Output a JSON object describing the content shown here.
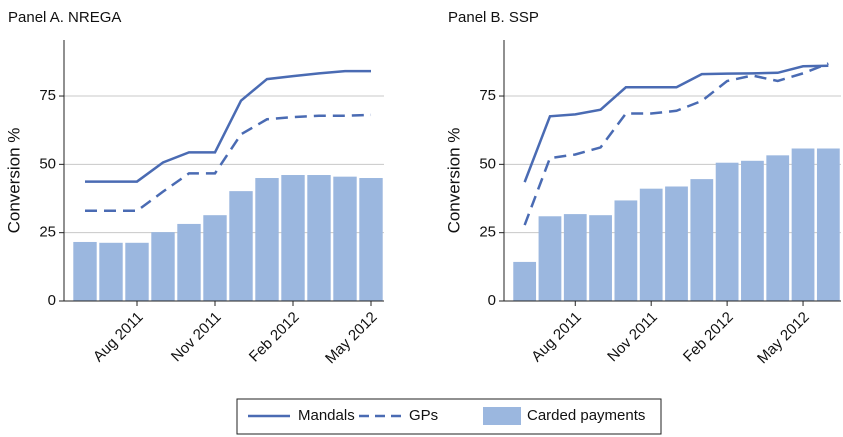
{
  "chart_data": [
    {
      "type": "combo",
      "title": "Panel A. NREGA",
      "ylabel": "Conversion %",
      "categories": [
        null,
        null,
        "Aug 2011",
        null,
        null,
        "Nov 2011",
        null,
        null,
        "Feb 2012",
        null,
        null,
        "May 2012"
      ],
      "ylim": [
        0,
        95.5
      ],
      "yticks": [
        0,
        25,
        50,
        75
      ],
      "grid": true,
      "series": [
        {
          "name": "Mandals",
          "mark": "line",
          "dash": false,
          "color": "#4a6bb3",
          "values": [
            43.7,
            43.7,
            43.7,
            50.7,
            54.4,
            54.4,
            73.3,
            81.2,
            82.3,
            83.3,
            84.1,
            84.1
          ]
        },
        {
          "name": "GPs",
          "mark": "line",
          "dash": true,
          "color": "#4a6bb3",
          "values": [
            33,
            33,
            33,
            40,
            46.7,
            46.7,
            61,
            66.5,
            67.3,
            67.8,
            67.8,
            68.1
          ]
        },
        {
          "name": "Carded payments",
          "mark": "bar",
          "color": "#9bb7df",
          "values": [
            21.6,
            21.3,
            21.3,
            25.2,
            28.2,
            31.4,
            40.2,
            45.0,
            46.1,
            46.1,
            45.5,
            45.0
          ]
        }
      ]
    },
    {
      "type": "combo",
      "title": "Panel B. SSP",
      "ylabel": "Conversion %",
      "categories": [
        null,
        null,
        "Aug 2011",
        null,
        null,
        "Nov 2011",
        null,
        null,
        "Feb 2012",
        null,
        null,
        "May 2012",
        null
      ],
      "ylim": [
        0,
        95.5
      ],
      "yticks": [
        0,
        25,
        50,
        75
      ],
      "grid": true,
      "series": [
        {
          "name": "Mandals",
          "mark": "line",
          "dash": false,
          "color": "#4a6bb3",
          "values": [
            43.5,
            67.6,
            68.3,
            70,
            78.2,
            78.2,
            78.2,
            83,
            83.2,
            83.3,
            83.5,
            85.9,
            86.1
          ]
        },
        {
          "name": "GPs",
          "mark": "line",
          "dash": true,
          "color": "#4a6bb3",
          "values": [
            27.8,
            52.3,
            53.6,
            56.2,
            68.6,
            68.6,
            69.6,
            73.2,
            80.5,
            82.5,
            80.5,
            83.3,
            86.9
          ]
        },
        {
          "name": "Carded payments",
          "mark": "bar",
          "color": "#9bb7df",
          "values": [
            14.3,
            31,
            31.8,
            31.4,
            36.8,
            41.1,
            41.9,
            44.6,
            50.6,
            51.3,
            53.3,
            55.8,
            55.8
          ]
        }
      ]
    }
  ]
}
